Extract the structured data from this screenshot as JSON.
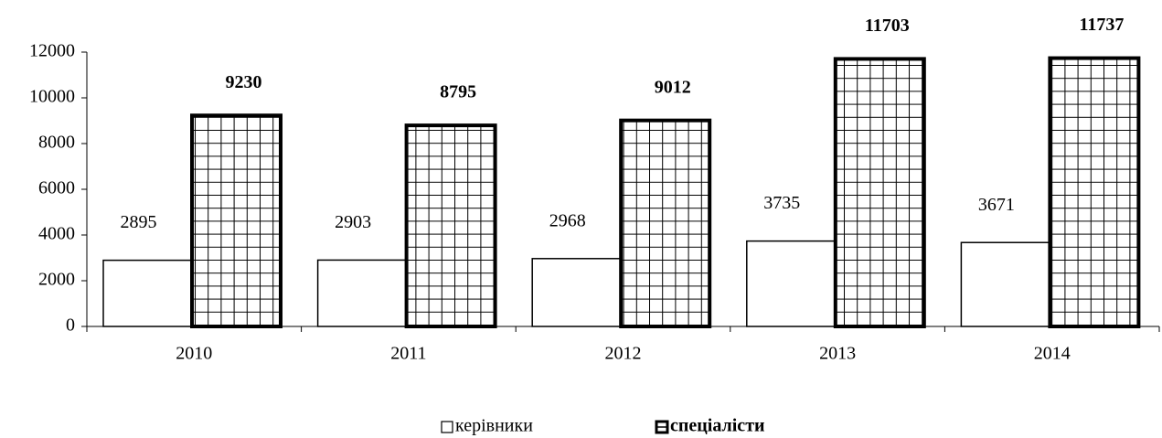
{
  "chart_data": {
    "type": "bar",
    "categories": [
      "2010",
      "2011",
      "2012",
      "2013",
      "2014"
    ],
    "series": [
      {
        "name": "керівники",
        "color": "#ffffff",
        "values": [
          2895,
          2903,
          2968,
          3735,
          3671
        ]
      },
      {
        "name": "спеціалісти",
        "color": "#ffffff",
        "pattern": "grid",
        "values": [
          9230,
          8795,
          9012,
          11703,
          11737
        ]
      }
    ],
    "ylim": [
      0,
      12000
    ],
    "yticks": [
      0,
      2000,
      4000,
      6000,
      8000,
      10000,
      12000
    ],
    "grid": false,
    "legend": "bottom"
  }
}
